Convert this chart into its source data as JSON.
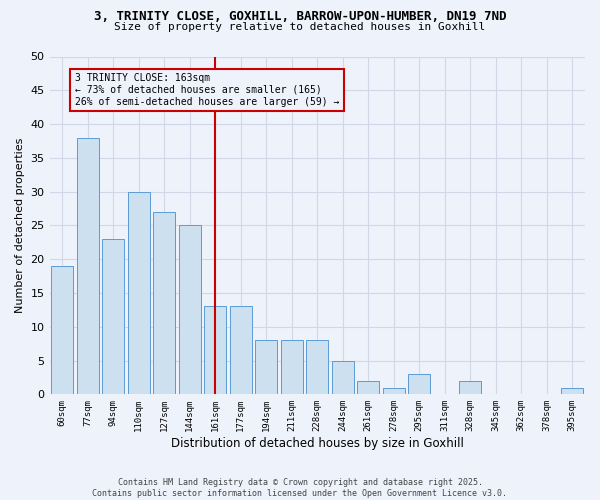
{
  "title1": "3, TRINITY CLOSE, GOXHILL, BARROW-UPON-HUMBER, DN19 7ND",
  "title2": "Size of property relative to detached houses in Goxhill",
  "xlabel": "Distribution of detached houses by size in Goxhill",
  "ylabel": "Number of detached properties",
  "categories": [
    "60sqm",
    "77sqm",
    "94sqm",
    "110sqm",
    "127sqm",
    "144sqm",
    "161sqm",
    "177sqm",
    "194sqm",
    "211sqm",
    "228sqm",
    "244sqm",
    "261sqm",
    "278sqm",
    "295sqm",
    "311sqm",
    "328sqm",
    "345sqm",
    "362sqm",
    "378sqm",
    "395sqm"
  ],
  "values": [
    19,
    38,
    23,
    30,
    27,
    25,
    13,
    13,
    8,
    8,
    8,
    5,
    2,
    1,
    3,
    0,
    2,
    0,
    0,
    0,
    1
  ],
  "bar_color": "#cce0f0",
  "bar_edge_color": "#5b9bd5",
  "vline_x": 6,
  "vline_color": "#cc0000",
  "annotation_line1": "3 TRINITY CLOSE: 163sqm",
  "annotation_line2": "← 73% of detached houses are smaller (165)",
  "annotation_line3": "26% of semi-detached houses are larger (59) →",
  "annotation_box_color": "#cc0000",
  "ylim": [
    0,
    50
  ],
  "yticks": [
    0,
    5,
    10,
    15,
    20,
    25,
    30,
    35,
    40,
    45,
    50
  ],
  "grid_color": "#d0d8e8",
  "background_color": "#eef2fb",
  "footer_text": "Contains HM Land Registry data © Crown copyright and database right 2025.\nContains public sector information licensed under the Open Government Licence v3.0."
}
